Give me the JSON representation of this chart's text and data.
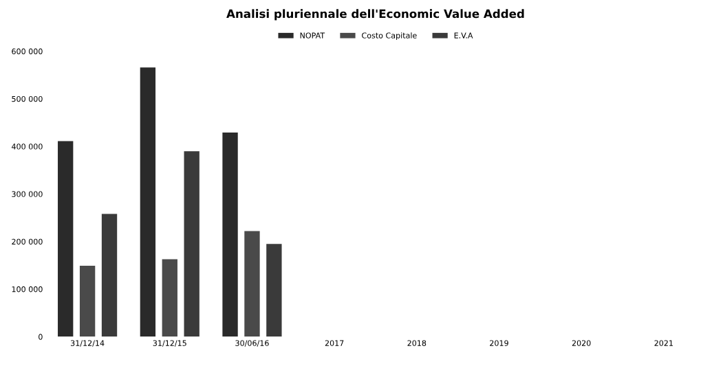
{
  "chart_data": {
    "type": "bar",
    "title": "Analisi pluriennale dell'Economic Value Added",
    "categories": [
      "31/12/14",
      "31/12/15",
      "30/06/16",
      "2017",
      "2018",
      "2019",
      "2020",
      "2021"
    ],
    "series": [
      {
        "name": "NOPAT",
        "color": "#2a2a2a",
        "values": [
          411000,
          566000,
          429000,
          null,
          null,
          null,
          null,
          null
        ]
      },
      {
        "name": "Costo Capitale",
        "color": "#4a4a4a",
        "values": [
          149000,
          163000,
          222000,
          null,
          null,
          null,
          null,
          null
        ]
      },
      {
        "name": "E.V.A",
        "color": "#3a3a3a",
        "values": [
          258000,
          390000,
          195000,
          null,
          null,
          null,
          null,
          null
        ]
      }
    ],
    "ylim": [
      0,
      600000
    ],
    "yticks": [
      0,
      {
        "value": 100000,
        "label": "100 000"
      },
      {
        "value": 200000,
        "label": "200 000"
      },
      {
        "value": 300000,
        "label": "300 000"
      },
      {
        "value": 400000,
        "label": "400 000"
      },
      {
        "value": 500000,
        "label": "500 000"
      },
      {
        "value": 600000,
        "label": "600 000"
      }
    ],
    "grid": false,
    "legend": "top"
  }
}
